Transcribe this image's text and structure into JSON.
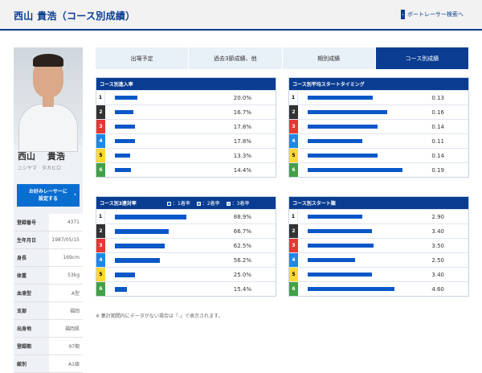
{
  "header": {
    "title": "西山 貴浩（コース別成績）",
    "link_label": "ボートレーサー検索へ"
  },
  "racer": {
    "name": "西山　 貴浩",
    "kana": "ニシヤマ　タカヒロ",
    "favorite_label_1": "お好みレーサーに",
    "favorite_label_2": "設定する",
    "profile": [
      {
        "key": "登録番号",
        "value": "4371"
      },
      {
        "key": "生年月日",
        "value": "1987/05/15"
      },
      {
        "key": "身長",
        "value": "169cm"
      },
      {
        "key": "体重",
        "value": "53kg"
      },
      {
        "key": "血液型",
        "value": "A型"
      },
      {
        "key": "支部",
        "value": "福岡"
      },
      {
        "key": "出身地",
        "value": "福岡県"
      },
      {
        "key": "登録期",
        "value": "97期"
      },
      {
        "key": "級別",
        "value": "A1級"
      }
    ]
  },
  "tabs": [
    "出場予定",
    "過去3節成績、他",
    "期別成績",
    "コース別成績"
  ],
  "lane_colors": [
    "#ffffff",
    "#333333",
    "#e53935",
    "#1e88e5",
    "#fdd835",
    "#43a047"
  ],
  "lane_text_colors": [
    "#000000",
    "#ffffff",
    "#ffffff",
    "#ffffff",
    "#000000",
    "#ffffff"
  ],
  "panels": {
    "entry_rate": {
      "title": "コース別進入率",
      "rows": [
        {
          "lane": "1",
          "value": "20.0%",
          "fraction": 0.2
        },
        {
          "lane": "2",
          "value": "16.7%",
          "fraction": 0.167
        },
        {
          "lane": "3",
          "value": "17.8%",
          "fraction": 0.178
        },
        {
          "lane": "4",
          "value": "17.8%",
          "fraction": 0.178
        },
        {
          "lane": "5",
          "value": "13.3%",
          "fraction": 0.133
        },
        {
          "lane": "6",
          "value": "14.4%",
          "fraction": 0.144
        }
      ]
    },
    "start_timing": {
      "title": "コース別平均スタートタイミング",
      "rows": [
        {
          "lane": "1",
          "value": "0.13",
          "fraction": 0.13
        },
        {
          "lane": "2",
          "value": "0.16",
          "fraction": 0.16
        },
        {
          "lane": "3",
          "value": "0.14",
          "fraction": 0.14
        },
        {
          "lane": "4",
          "value": "0.11",
          "fraction": 0.11
        },
        {
          "lane": "5",
          "value": "0.14",
          "fraction": 0.14
        },
        {
          "lane": "6",
          "value": "0.19",
          "fraction": 0.19
        }
      ]
    },
    "top3_rate": {
      "title": "コース別3連対率",
      "legend": [
        "：1着率",
        "：2着率",
        "：3着率"
      ],
      "rows": [
        {
          "lane": "1",
          "value": "88.9%",
          "parts": [
            0.75,
            0.06,
            0.08
          ]
        },
        {
          "lane": "2",
          "value": "66.7%",
          "parts": [
            0.2,
            0.07,
            0.4
          ]
        },
        {
          "lane": "3",
          "value": "62.5%",
          "parts": [
            0.31,
            0.25,
            0.06
          ]
        },
        {
          "lane": "4",
          "value": "56.2%",
          "parts": [
            0.06,
            0.13,
            0.37
          ]
        },
        {
          "lane": "5",
          "value": "25.0%",
          "parts": [
            0.08,
            0.0,
            0.17
          ]
        },
        {
          "lane": "6",
          "value": "15.4%",
          "parts": [
            0.05,
            0.0,
            0.1
          ]
        }
      ]
    },
    "start_order": {
      "title": "コース別スタート順",
      "rows": [
        {
          "lane": "1",
          "value": "2.90",
          "fraction": 0.29
        },
        {
          "lane": "2",
          "value": "3.40",
          "fraction": 0.34
        },
        {
          "lane": "3",
          "value": "3.50",
          "fraction": 0.35
        },
        {
          "lane": "4",
          "value": "2.50",
          "fraction": 0.25
        },
        {
          "lane": "5",
          "value": "3.40",
          "fraction": 0.34
        },
        {
          "lane": "6",
          "value": "4.60",
          "fraction": 0.46
        }
      ]
    }
  },
  "note": "※ 集計期間内にデータがない場合は「-」で表示されます。"
}
